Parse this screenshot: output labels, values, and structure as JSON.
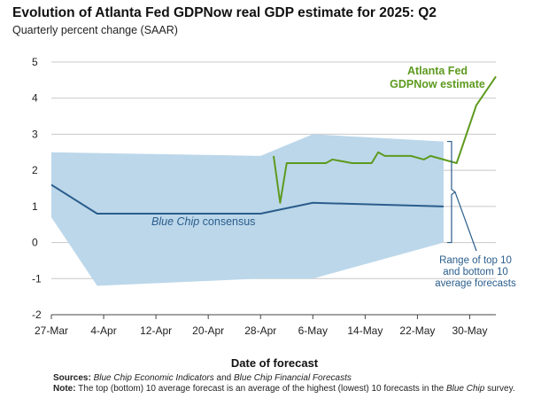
{
  "title": "Evolution of Atlanta Fed GDPNow real GDP estimate for 2025: Q2",
  "subtitle": "Quarterly percent change (SAAR)",
  "colors": {
    "gdpnow": "#5e9a1f",
    "consensus": "#2a5d8c",
    "band": "#bcd7ea",
    "grid": "#c8c8c8",
    "label_blue": "#2a5d8c"
  },
  "notes": {
    "sources_label": "Sources:",
    "sources_part1": "Blue Chip Economic Indicators",
    "sources_and": "and",
    "sources_part2": "Blue Chip Financial Forecasts",
    "note_label": "Note:",
    "note_text": "The top (bottom) 10 average forecast is an average of the highest (lowest) 10 forecasts in the",
    "note_blue_chip": "Blue Chip",
    "note_end": "survey."
  },
  "chart_data": {
    "type": "line",
    "title": "Evolution of Atlanta Fed GDPNow real GDP estimate for 2025: Q2",
    "subtitle": "Quarterly percent change (SAAR)",
    "xlabel": "Date of forecast",
    "ylabel": "",
    "ylim": [
      -2,
      5
    ],
    "xlim": [
      "2025-03-27",
      "2025-06-03"
    ],
    "x_ticks": [
      "2025-03-27",
      "2025-04-04",
      "2025-04-12",
      "2025-04-20",
      "2025-04-28",
      "2025-05-06",
      "2025-05-14",
      "2025-05-22",
      "2025-05-30"
    ],
    "x_tick_labels": [
      "27-Mar",
      "4-Apr",
      "12-Apr",
      "20-Apr",
      "28-Apr",
      "6-May",
      "14-May",
      "22-May",
      "30-May"
    ],
    "y_ticks": [
      5,
      4,
      3,
      2,
      1,
      0,
      -1,
      -2
    ],
    "grid": "horizontal",
    "series": [
      {
        "name": "Atlanta Fed GDPNow estimate",
        "kind": "line",
        "points": [
          [
            "2025-04-30",
            2.4
          ],
          [
            "2025-05-01",
            1.1
          ],
          [
            "2025-05-02",
            2.2
          ],
          [
            "2025-05-05",
            2.2
          ],
          [
            "2025-05-08",
            2.2
          ],
          [
            "2025-05-09",
            2.3
          ],
          [
            "2025-05-12",
            2.2
          ],
          [
            "2025-05-15",
            2.2
          ],
          [
            "2025-05-16",
            2.5
          ],
          [
            "2025-05-17",
            2.4
          ],
          [
            "2025-05-20",
            2.4
          ],
          [
            "2025-05-21",
            2.4
          ],
          [
            "2025-05-23",
            2.3
          ],
          [
            "2025-05-24",
            2.4
          ],
          [
            "2025-05-28",
            2.2
          ],
          [
            "2025-05-31",
            3.8
          ],
          [
            "2025-06-03",
            4.6
          ]
        ]
      },
      {
        "name": "Blue Chip consensus",
        "kind": "line",
        "points": [
          [
            "2025-03-27",
            1.6
          ],
          [
            "2025-04-03",
            0.8
          ],
          [
            "2025-04-28",
            0.8
          ],
          [
            "2025-05-06",
            1.1
          ],
          [
            "2025-05-26",
            1.0
          ]
        ]
      },
      {
        "name": "Range of top 10 and bottom 10 average forecasts",
        "kind": "band",
        "upper": [
          [
            "2025-03-27",
            2.5
          ],
          [
            "2025-04-28",
            2.4
          ],
          [
            "2025-05-06",
            3.0
          ],
          [
            "2025-05-26",
            2.8
          ]
        ],
        "lower": [
          [
            "2025-03-27",
            0.7
          ],
          [
            "2025-04-03",
            -1.2
          ],
          [
            "2025-04-28",
            -1.0
          ],
          [
            "2025-05-06",
            -1.0
          ],
          [
            "2025-05-26",
            0.0
          ]
        ]
      }
    ],
    "annotations": [
      {
        "lines": [
          "Atlanta Fed",
          "GDPNow estimate"
        ],
        "series": "Atlanta Fed GDPNow estimate"
      },
      {
        "text_italic": "Blue Chip",
        "text_rest": " consensus",
        "series": "Blue Chip consensus"
      },
      {
        "lines": [
          "Range of top 10",
          "and bottom 10",
          "average forecasts"
        ],
        "series": "Range of top 10 and bottom 10 average forecasts"
      }
    ]
  }
}
